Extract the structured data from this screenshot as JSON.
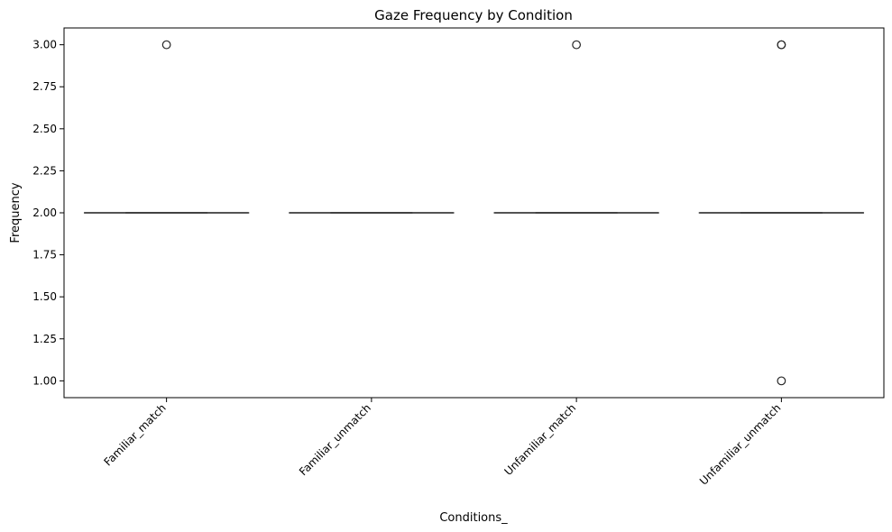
{
  "chart_data": {
    "type": "box",
    "title": "Gaze Frequency by Condition",
    "xlabel": "Conditions_",
    "ylabel": "Frequency",
    "ylim": [
      0.9,
      3.1
    ],
    "yticks": [
      "1.00",
      "1.25",
      "1.50",
      "1.75",
      "2.00",
      "2.25",
      "2.50",
      "2.75",
      "3.00"
    ],
    "ytick_values": [
      1.0,
      1.25,
      1.5,
      1.75,
      2.0,
      2.25,
      2.5,
      2.75,
      3.0
    ],
    "grid": false,
    "legend": "none",
    "box_color": "#3d3d3d",
    "categories": [
      "Familiar_match",
      "Familiar_unmatch",
      "Unfamiliar_match",
      "Unfamiliar_unmatch"
    ],
    "boxes": [
      {
        "category": "Familiar_match",
        "q1": 2,
        "median": 2,
        "q3": 2,
        "whisker_low": 2,
        "whisker_high": 2,
        "outliers": [
          3
        ]
      },
      {
        "category": "Familiar_unmatch",
        "q1": 2,
        "median": 2,
        "q3": 2,
        "whisker_low": 2,
        "whisker_high": 2,
        "outliers": []
      },
      {
        "category": "Unfamiliar_match",
        "q1": 2,
        "median": 2,
        "q3": 2,
        "whisker_low": 2,
        "whisker_high": 2,
        "outliers": [
          3
        ]
      },
      {
        "category": "Unfamiliar_unmatch",
        "q1": 2,
        "median": 2,
        "q3": 2,
        "whisker_low": 2,
        "whisker_high": 2,
        "outliers": [
          3,
          3,
          1
        ]
      }
    ]
  }
}
